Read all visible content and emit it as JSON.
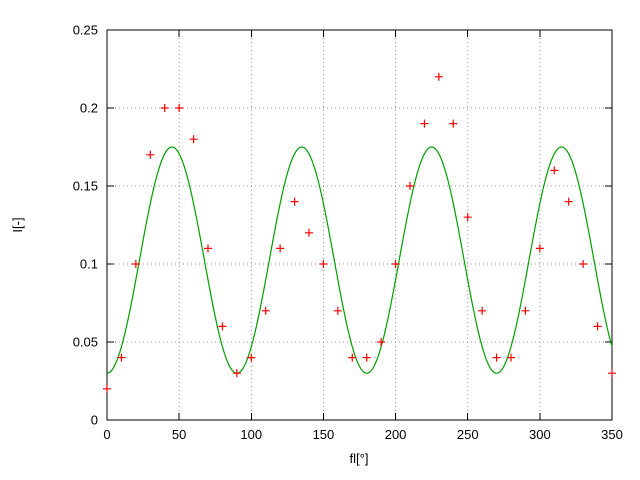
{
  "chart_data": {
    "type": "scatter",
    "title": "",
    "xlabel": "fl[°]",
    "ylabel": "I[-]",
    "xlim": [
      0,
      350
    ],
    "ylim": [
      0,
      0.25
    ],
    "grid": "dotted",
    "legend": "none",
    "xticks": [
      {
        "v": 0,
        "label": "0"
      },
      {
        "v": 50,
        "label": "50"
      },
      {
        "v": 100,
        "label": "100"
      },
      {
        "v": 150,
        "label": "150"
      },
      {
        "v": 200,
        "label": "200"
      },
      {
        "v": 250,
        "label": "250"
      },
      {
        "v": 300,
        "label": "300"
      },
      {
        "v": 350,
        "label": "350"
      }
    ],
    "yticks": [
      {
        "v": 0,
        "label": "0"
      },
      {
        "v": 0.05,
        "label": "0.05"
      },
      {
        "v": 0.1,
        "label": "0.1"
      },
      {
        "v": 0.15,
        "label": "0.15"
      },
      {
        "v": 0.2,
        "label": "0.2"
      },
      {
        "v": 0.25,
        "label": "0.25"
      }
    ],
    "series": [
      {
        "name": "measured-points",
        "kind": "points",
        "marker": "plus",
        "color": "#ff0000",
        "points": [
          [
            0,
            0.02
          ],
          [
            10,
            0.04
          ],
          [
            20,
            0.1
          ],
          [
            30,
            0.17
          ],
          [
            40,
            0.2
          ],
          [
            50,
            0.2
          ],
          [
            60,
            0.18
          ],
          [
            70,
            0.11
          ],
          [
            80,
            0.06
          ],
          [
            90,
            0.03
          ],
          [
            100,
            0.04
          ],
          [
            110,
            0.07
          ],
          [
            120,
            0.11
          ],
          [
            130,
            0.14
          ],
          [
            140,
            0.12
          ],
          [
            150,
            0.1
          ],
          [
            160,
            0.07
          ],
          [
            170,
            0.04
          ],
          [
            180,
            0.04
          ],
          [
            190,
            0.05
          ],
          [
            200,
            0.1
          ],
          [
            210,
            0.15
          ],
          [
            220,
            0.19
          ],
          [
            230,
            0.22
          ],
          [
            240,
            0.19
          ],
          [
            250,
            0.13
          ],
          [
            260,
            0.07
          ],
          [
            270,
            0.04
          ],
          [
            280,
            0.04
          ],
          [
            290,
            0.07
          ],
          [
            300,
            0.11
          ],
          [
            310,
            0.16
          ],
          [
            320,
            0.14
          ],
          [
            330,
            0.1
          ],
          [
            340,
            0.06
          ],
          [
            350,
            0.03
          ]
        ]
      },
      {
        "name": "fit-curve",
        "kind": "curve",
        "color": "#00a000",
        "model": "offset + amplitude * sin(pi*x/period)^2",
        "offset": 0.03,
        "amplitude": 0.145,
        "period": 90
      }
    ],
    "colors": {
      "axis": "#000000",
      "grid": "#999999",
      "background": "#ffffff"
    }
  }
}
